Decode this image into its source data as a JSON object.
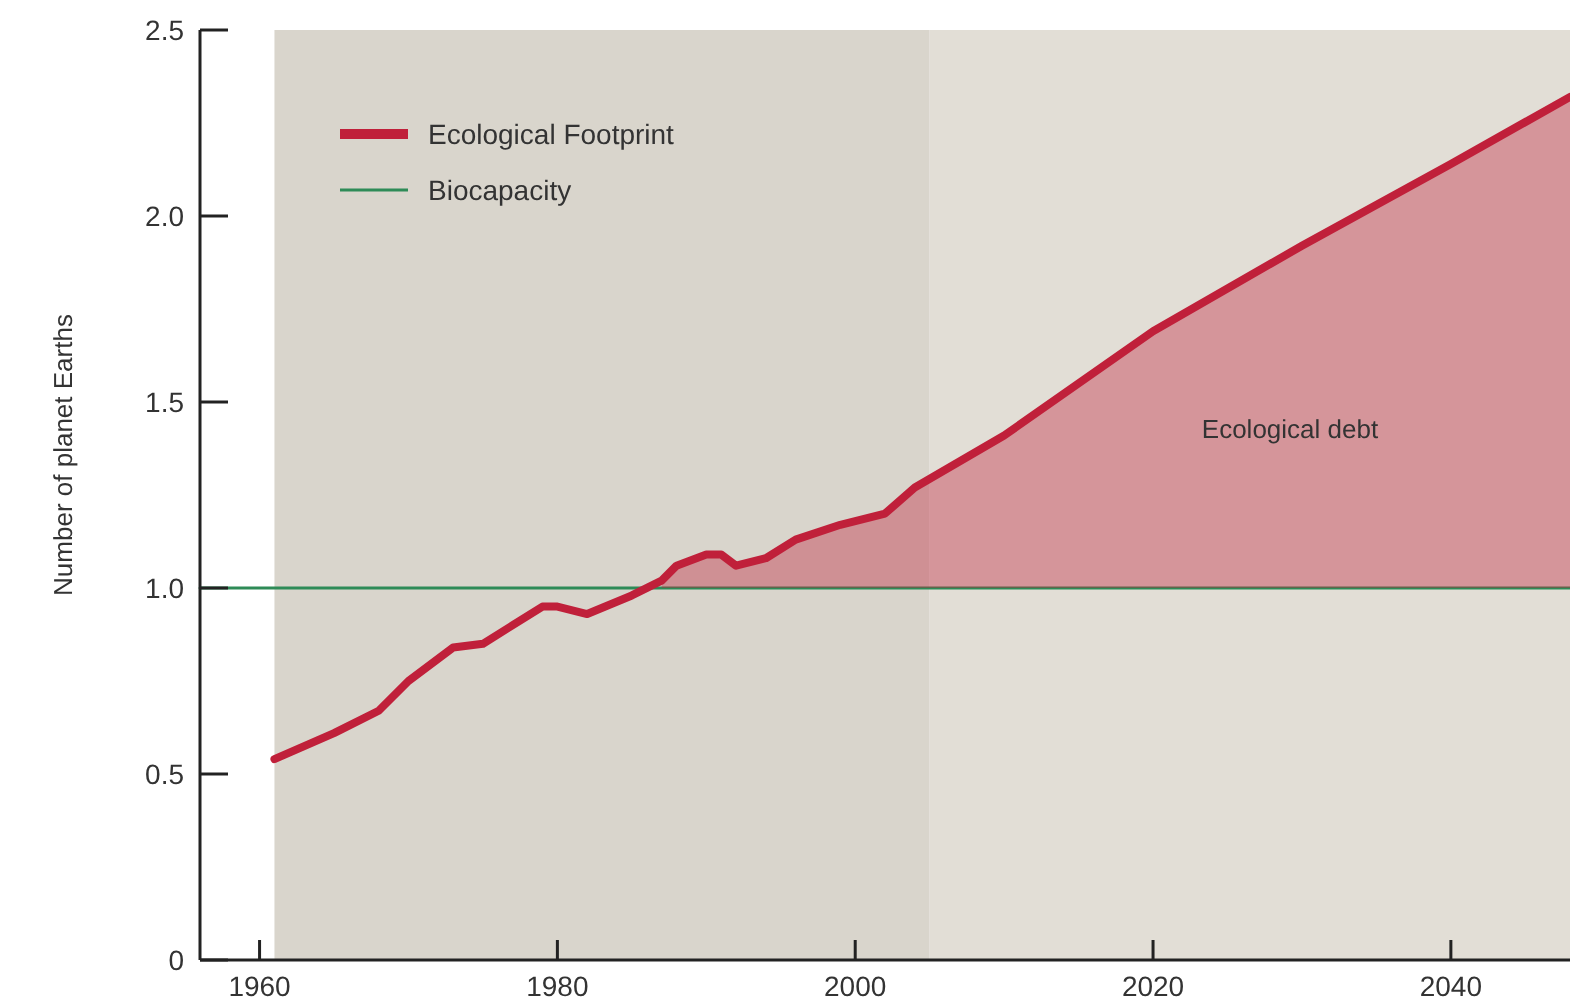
{
  "chart_data": {
    "type": "line",
    "ylabel": "Number of planet Earths",
    "xlim": [
      1956,
      2048
    ],
    "xticks": [
      1960,
      1980,
      2000,
      2020,
      2040
    ],
    "ylim": [
      0,
      2.5
    ],
    "yticks": [
      0,
      {
        "value": 0.5,
        "label": "0.5"
      },
      {
        "value": 1,
        "label": "1.0"
      },
      {
        "value": 1.5,
        "label": "1.5"
      },
      {
        "value": 2,
        "label": "2.0"
      },
      {
        "value": 2.5,
        "label": "2.5"
      }
    ],
    "legend": "top left",
    "grid": false,
    "annotations": [
      "Ecological debt"
    ],
    "bands": [
      {
        "axis": "x",
        "from": 1961,
        "to": 2005,
        "color": "#d9d5cc"
      },
      {
        "axis": "x",
        "from": 2005,
        "to": 2048,
        "color": "#e2ded6"
      }
    ],
    "series": [
      {
        "name": "Ecological Footprint",
        "color": "#c0203a",
        "x": [
          1961,
          1965,
          1968,
          1970,
          1973,
          1975,
          1977,
          1979,
          1980,
          1982,
          1985,
          1987,
          1988,
          1990,
          1991,
          1992,
          1994,
          1996,
          1999,
          2001,
          2002,
          2004,
          2010,
          2020,
          2030,
          2040,
          2048
        ],
        "values": [
          0.54,
          0.61,
          0.67,
          0.75,
          0.84,
          0.85,
          0.9,
          0.95,
          0.95,
          0.93,
          0.98,
          1.02,
          1.06,
          1.09,
          1.09,
          1.06,
          1.08,
          1.13,
          1.17,
          1.19,
          1.2,
          1.27,
          1.41,
          1.69,
          1.92,
          2.14,
          2.32
        ],
        "lower": [
          null,
          null,
          null,
          null,
          null,
          null,
          null,
          null,
          null,
          null,
          null,
          1,
          1,
          1,
          1,
          1,
          1,
          1,
          1,
          1,
          1,
          1,
          1,
          1,
          1,
          1,
          1
        ],
        "upper": [
          null,
          null,
          null,
          null,
          null,
          null,
          null,
          null,
          null,
          null,
          null,
          1.02,
          1.06,
          1.09,
          1.09,
          1.06,
          1.08,
          1.13,
          1.17,
          1.19,
          1.2,
          1.27,
          1.41,
          1.69,
          1.92,
          2.14,
          2.32
        ]
      },
      {
        "name": "Biocapacity",
        "color": "#2e8b57",
        "x": [
          1956,
          2048
        ],
        "values": [
          1,
          1
        ]
      }
    ]
  }
}
